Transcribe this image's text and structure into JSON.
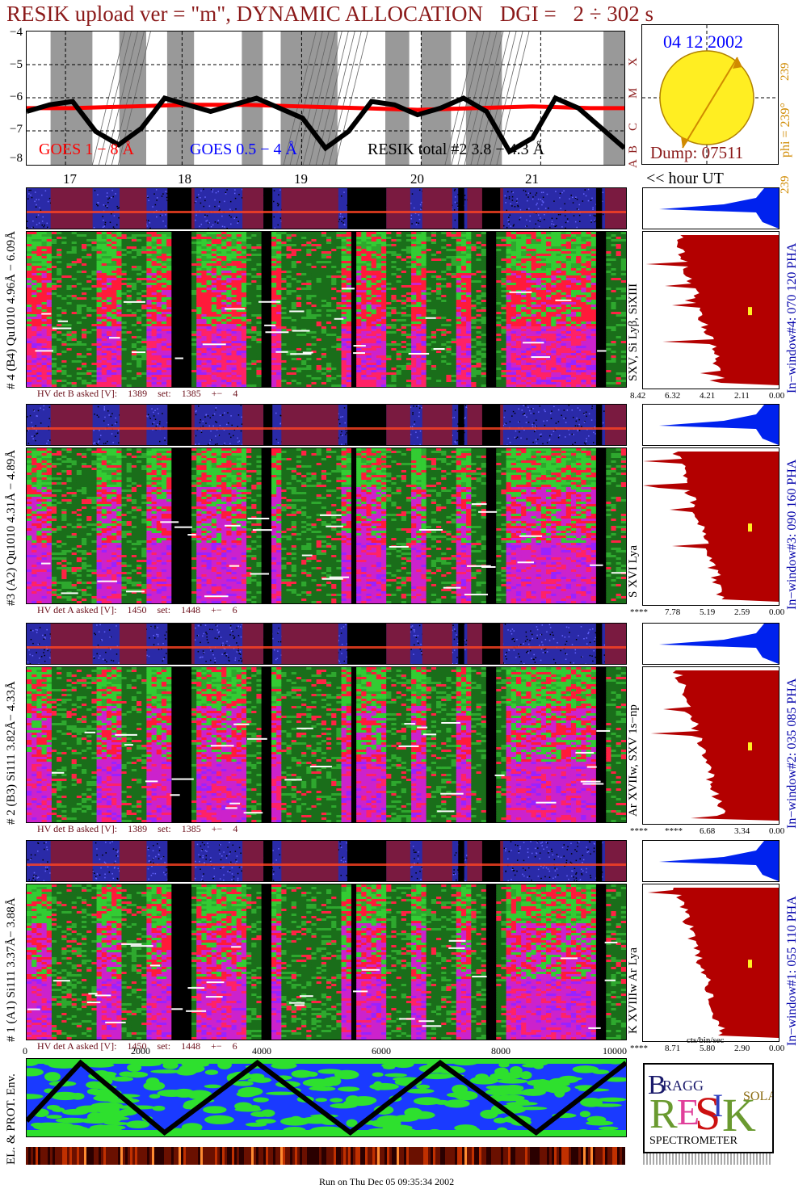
{
  "header": {
    "title_main": "RESIK upload ver = \"m\", DYNAMIC ALLOCATION",
    "title_dgi_label": "DGI =",
    "title_dgi_value": "2 ÷ 302 s"
  },
  "goes_panel": {
    "y_ticks": [
      "−4",
      "−5",
      "−6",
      "−7",
      "−8"
    ],
    "class_letters": [
      "X",
      "M",
      "C",
      "B",
      "A"
    ],
    "legend_goes_long": "GOES 1 − 8 Å",
    "legend_goes_short": "GOES 0.5 − 4 Å",
    "legend_resik": "RESIK total #2  3.8 − 4.3 Å"
  },
  "sun_panel": {
    "date": "04 12 2002",
    "phi_label": "phi = 239°",
    "phi_top": "239",
    "phi_bottom": "239",
    "dump": "Dump: 07511"
  },
  "time_axis": {
    "hours": [
      "17",
      "18",
      "19",
      "20",
      "21"
    ],
    "hour_label": "<< hour UT"
  },
  "detectors": [
    {
      "left_label": "# 4 (B4) Qu1010 4.96Å − 6.09Å",
      "line_label": "SXV, Si Lyβ, SiXIII",
      "window_label": "In−window#4:  070 120 PHA",
      "hv": {
        "asked": "HV det B asked [V]:",
        "asked_val": "1389",
        "set": "set:",
        "set_val": "1385",
        "pm": "+−",
        "pm_val": "4"
      },
      "spec_ticks": [
        "8.42",
        "6.32",
        "4.21",
        "2.11",
        "0.00"
      ]
    },
    {
      "left_label": "#3 (A2) Qu1010  4.31Å − 4.89Å",
      "line_label": "S XVI Lya",
      "window_label": "In−window#3:  090 160 PHA",
      "hv": {
        "asked": "HV det A asked [V]:",
        "asked_val": "1450",
        "set": "set:",
        "set_val": "1448",
        "pm": "+−",
        "pm_val": "6"
      },
      "spec_ticks": [
        "****",
        "7.78",
        "5.19",
        "2.59",
        "0.00"
      ]
    },
    {
      "left_label": "# 2 (B3) Si111  3.82Å− 4.33Å",
      "line_label": "Ar XVIIw,  SXV 1s−np",
      "window_label": "In−window#2:  035 085 PHA",
      "hv": {
        "asked": "HV det B asked [V]:",
        "asked_val": "1389",
        "set": "set:",
        "set_val": "1385",
        "pm": "+−",
        "pm_val": "4"
      },
      "spec_ticks": [
        "****",
        "****",
        "6.68",
        "3.34",
        "0.00"
      ]
    },
    {
      "left_label": "# 1 (A1) Si111  3.37Å− 3.88Å",
      "line_label": "K XVIIIw  Ar Lya",
      "window_label": "In−window#1:  055 110 PHA",
      "hv": {
        "asked": "HV det A asked [V]:",
        "asked_val": "1450",
        "set": "set:",
        "set_val": "1448",
        "pm": "+−",
        "pm_val": "6"
      },
      "spec_ticks": [
        "****",
        "8.71",
        "5.80",
        "2.90",
        "0.00"
      ]
    }
  ],
  "bottom_axis": {
    "ticks": [
      "0",
      "2000",
      "4000",
      "6000",
      "8000",
      "10000"
    ],
    "spec_unit": "cts/bin/sec"
  },
  "env_panel": {
    "label": "EL. & PROT. Env."
  },
  "logo": {
    "bragg": "BRAGG",
    "resik": "RESIK",
    "solar": "SOLAR",
    "spectrometer": "SPECTROMETER"
  },
  "footer": {
    "run_text": "Run on Thu Dec 05 09:35:34 2002"
  },
  "colors": {
    "title": "#8b1a1a",
    "goes_long": "#ff0000",
    "goes_short": "#0000ff",
    "spectrum_fill": "#b30000",
    "pha_fill": "#0022ee",
    "sun": "#ffee22",
    "phi": "#d08a00"
  },
  "chart_data": [
    {
      "type": "line",
      "title": "",
      "ylabel": "",
      "y_log_exponent_range": [
        -8,
        -4
      ],
      "x_hours": [
        17,
        18,
        19,
        20,
        21
      ],
      "series": [
        {
          "name": "GOES 1 − 8 Å",
          "x": [
            16.6,
            17.0,
            17.5,
            18.0,
            18.5,
            19.0,
            19.5,
            20.0,
            20.5,
            21.0,
            21.5,
            21.8
          ],
          "y": [
            -6.3,
            -6.3,
            -6.25,
            -6.2,
            -6.2,
            -6.25,
            -6.3,
            -6.35,
            -6.3,
            -6.25,
            -6.3,
            -6.3
          ]
        },
        {
          "name": "RESIK total #2  3.8 − 4.3 Å",
          "x": [
            16.6,
            16.8,
            17.0,
            17.2,
            17.4,
            17.6,
            17.8,
            18.0,
            18.2,
            18.4,
            18.6,
            18.8,
            19.0,
            19.2,
            19.4,
            19.6,
            19.8,
            20.0,
            20.2,
            20.4,
            20.6,
            20.8,
            21.0,
            21.2,
            21.4,
            21.6,
            21.8
          ],
          "y": [
            -6.4,
            -6.2,
            -6.1,
            -7.0,
            -7.4,
            -6.9,
            -6.0,
            -6.2,
            -6.4,
            -6.2,
            -6.0,
            -6.3,
            -6.6,
            -7.5,
            -7.0,
            -6.1,
            -6.2,
            -6.5,
            -6.3,
            -6.0,
            -6.4,
            -7.6,
            -7.2,
            -6.0,
            -6.3,
            -6.9,
            -7.5
          ]
        }
      ]
    },
    {
      "type": "line",
      "title": "",
      "xlabel": "",
      "ylabel": "",
      "xlim": [
        0,
        10000
      ],
      "series": [
        {
          "name": "",
          "x": [
            0,
            900,
            2300,
            3850,
            5400,
            6900,
            8500,
            10000
          ],
          "y": [
            0.2,
            0.95,
            0.05,
            0.95,
            0.05,
            0.95,
            0.05,
            0.95
          ]
        }
      ]
    }
  ]
}
